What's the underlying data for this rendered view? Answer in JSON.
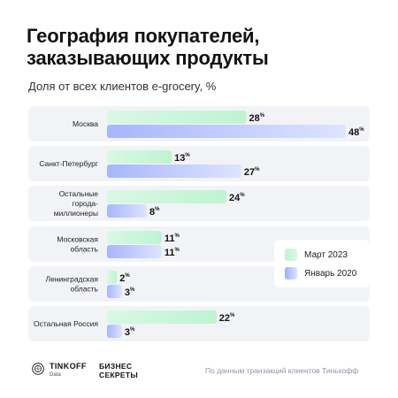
{
  "header": {
    "title": "География покупателей, заказывающих продукты",
    "subtitle": "Доля от всех клиентов e-grocery, %"
  },
  "colors": {
    "series1_start": "#bff3d2",
    "series1_end": "#d9f8e4",
    "series2_start": "#9fb0fb",
    "series2_end": "#dde4ff",
    "group_bg": "#f2f3f6"
  },
  "legend": {
    "items": [
      "Март 2023",
      "Январь 2020"
    ]
  },
  "footer": {
    "brand": "TINKOFF",
    "brand_sub": "Data",
    "partner_line1": "БИЗНЕС",
    "partner_line2": "СЕКРЕТЫ",
    "source": "По данным транзакций клиентов Тинькофф"
  },
  "chart_data": {
    "type": "bar",
    "orientation": "horizontal",
    "title": "География покупателей, заказывающих продукты",
    "subtitle": "Доля от всех клиентов e-grocery, %",
    "unit": "%",
    "categories": [
      [
        "Москва"
      ],
      [
        "Санкт-Петербург"
      ],
      [
        "Остальные",
        "города-",
        "миллионеры"
      ],
      [
        "Московская",
        "область"
      ],
      [
        "Ленинградская",
        "область"
      ],
      [
        "Остальная Россия"
      ]
    ],
    "series": [
      {
        "name": "Март 2023",
        "values": [
          28,
          13,
          24,
          11,
          2,
          22
        ]
      },
      {
        "name": "Январь 2020",
        "values": [
          48,
          27,
          8,
          11,
          3,
          3
        ]
      }
    ],
    "xlim": [
      0,
      48
    ],
    "legend_position": "right"
  }
}
